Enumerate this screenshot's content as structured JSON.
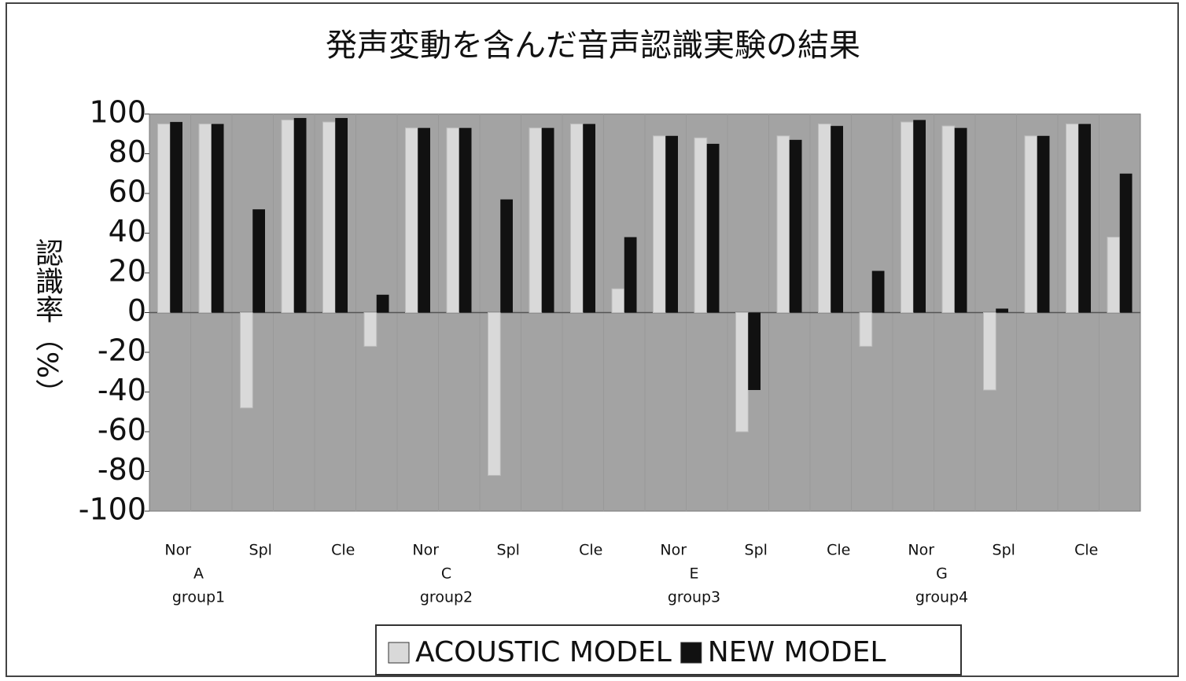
{
  "chart_data": {
    "type": "bar",
    "title": "発声変動を含んだ音声認識実験の結果",
    "y_label": "認識率（%）",
    "categories": [
      "Nor",
      null,
      "Spl",
      null,
      "Cle",
      null,
      "Nor",
      null,
      "Spl",
      null,
      "Cle",
      null,
      "Nor",
      null,
      "Spl",
      null,
      "Cle",
      null,
      "Nor",
      null,
      "Spl",
      null,
      "Cle",
      null
    ],
    "groups": [
      "A",
      "C",
      "E",
      "G"
    ],
    "supergroups": [
      "group1",
      "group2",
      "group3",
      "group4"
    ],
    "series": [
      {
        "name": "ACOUSTIC MODEL",
        "color": "#d9d9d9",
        "values": [
          95,
          95,
          -48,
          97,
          96,
          -17,
          93,
          93,
          -82,
          93,
          95,
          12,
          89,
          88,
          -60,
          89,
          95,
          -17,
          96,
          94,
          -39,
          89,
          95,
          38
        ]
      },
      {
        "name": "NEW MODEL",
        "color": "#111111",
        "values": [
          96,
          95,
          52,
          98,
          98,
          9,
          93,
          93,
          57,
          93,
          95,
          38,
          89,
          85,
          -39,
          87,
          94,
          21,
          97,
          93,
          2,
          89,
          95,
          70
        ]
      }
    ],
    "ylim": [
      -100,
      100
    ],
    "yticks": [
      -100,
      -80,
      -60,
      -40,
      -20,
      0,
      20,
      40,
      60,
      80,
      100
    ],
    "plot_color": "#a3a3a3"
  }
}
